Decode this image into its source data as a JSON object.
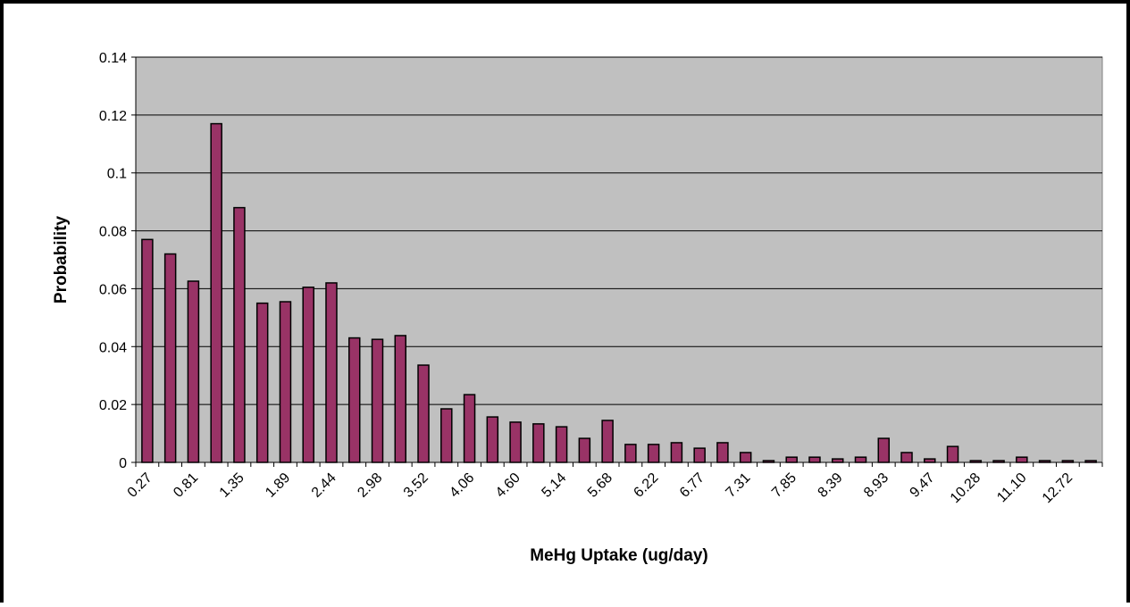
{
  "chart_data": {
    "type": "bar",
    "xlabel": "MeHg Uptake (ug/day)",
    "ylabel": "Probability",
    "categories": [
      "0.27",
      null,
      "0.81",
      null,
      "1.35",
      null,
      "1.89",
      null,
      "2.44",
      null,
      "2.98",
      null,
      "3.52",
      null,
      "4.06",
      null,
      "4.60",
      null,
      "5.14",
      null,
      "5.68",
      null,
      "6.22",
      null,
      "6.77",
      null,
      "7.31",
      null,
      "7.85",
      null,
      "8.39",
      null,
      "8.93",
      null,
      "9.47",
      null,
      "10.28",
      null,
      "11.10",
      null,
      "12.72",
      null
    ],
    "values": [
      0.077,
      0.072,
      0.0626,
      0.117,
      0.088,
      0.055,
      0.0555,
      0.0605,
      0.062,
      0.043,
      0.0425,
      0.0438,
      0.0336,
      0.0185,
      0.0234,
      0.0157,
      0.0139,
      0.0133,
      0.0123,
      0.0083,
      0.0145,
      0.0062,
      0.0062,
      0.0068,
      0.0049,
      0.0068,
      0.0034,
      0.0006,
      0.0018,
      0.0018,
      0.0012,
      0.0018,
      0.0083,
      0.0034,
      0.0012,
      0.0055,
      0.0006,
      0.0006,
      0.0018,
      0.0006,
      0.0006,
      0.0006
    ],
    "color": "#993366",
    "ylim": [
      0,
      0.14
    ],
    "yticks": [
      0,
      0.02,
      0.04,
      0.06,
      0.08,
      0.1,
      0.12,
      0.14
    ],
    "grid": true
  }
}
